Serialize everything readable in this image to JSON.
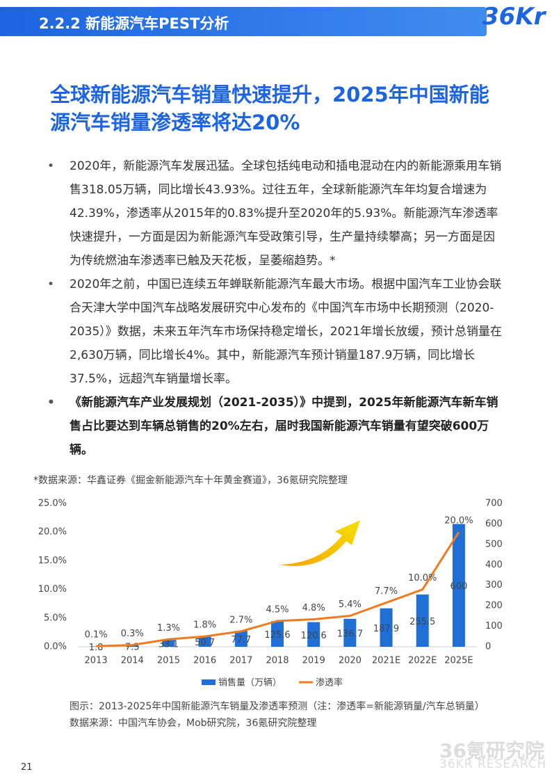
{
  "header": {
    "section": "2.2.2 新能源汽车PEST分析",
    "logo": "36Kr"
  },
  "title": "全球新能源汽车销量快速提升，2025年中国新能源汽车销量渗透率将达20%",
  "bullets": [
    "2020年，新能源汽车发展迅猛。全球包括纯电动和插电混动在内的新能源乘用车销售318.05万辆，同比增长43.93%。过往五年，全球新能源汽车年均复合增速为42.39%，渗透率从2015年的0.83%提升至2020年的5.93%。新能源汽车渗透率快速提升，一方面是因为新能源汽车受政策引导，生产量持续攀高；另一方面是因为传统燃油车渗透率已触及天花板，呈萎缩趋势。*",
    "2020年之前，中国已连续五年蝉联新能源汽车最大市场。根据中国汽车工业协会联合天津大学中国汽车战略发展研究中心发布的《中国汽车市场中长期预测（2020-2035）》数据，未来五年汽车市场保持稳定增长，2021年增长放缓，预计总销量在2,630万辆，同比增长4%。其中，新能源汽车预计销量187.9万辆，同比增长37.5%，远超汽车销量增长率。",
    "《新能源汽车产业发展规划（2021-2035）》中提到，2025年新能源汽车新车销售占比要达到车辆总销售的20%左右，届时我国新能源汽车销量有望突破600万辆。"
  ],
  "source_note": "*数据来源：华鑫证券《掘金新能源汽车十年黄金赛道》，36氪研究院整理",
  "chart_data": {
    "type": "combo",
    "categories": [
      "2013",
      "2014",
      "2015",
      "2016",
      "2017",
      "2018",
      "2019",
      "2020",
      "2021E",
      "2022E",
      "2025E"
    ],
    "series": [
      {
        "name": "销售量（万辆）",
        "type": "bar",
        "axis": "y2",
        "color": "#1f6fd6",
        "values": [
          1.8,
          7.5,
          33.1,
          50.7,
          77.7,
          125.6,
          120.6,
          136.7,
          187.9,
          255.5,
          600
        ]
      },
      {
        "name": "渗透率",
        "type": "line",
        "color": "#f07a1e",
        "values": [
          0.1,
          0.3,
          1.3,
          1.8,
          2.7,
          4.5,
          4.8,
          5.4,
          7.7,
          10.0,
          20.0
        ],
        "value_labels": [
          "0.1%",
          "0.3%",
          "1.3%",
          "1.8%",
          "2.7%",
          "4.5%",
          "4.8%",
          "5.4%",
          "7.7%",
          "10.0%",
          "20.0%"
        ]
      }
    ],
    "ylim": [
      0,
      25
    ],
    "yticks": [
      {
        "value": 0,
        "label": "0.0%"
      },
      {
        "value": 5,
        "label": "5.0%"
      },
      {
        "value": 10,
        "label": "10.0%"
      },
      {
        "value": 15,
        "label": "15.0%"
      },
      {
        "value": 20,
        "label": "20.0%"
      },
      {
        "value": 25,
        "label": "25.0%"
      }
    ],
    "y2lim": [
      0,
      700
    ],
    "y2ticks": [
      0,
      100,
      200,
      300,
      400,
      500,
      600,
      700
    ],
    "legend": "bottom"
  },
  "caption": [
    "图示：2013-2025年中国新能源汽车销量及渗透率预测（注：渗透率=新能源销量/汽车总销量）",
    "数据来源：中国汽车协会，Mob研究院，36氪研究院整理"
  ],
  "page_number": "21",
  "watermark": [
    "36氪研究院",
    "36KR RESEARCH"
  ]
}
